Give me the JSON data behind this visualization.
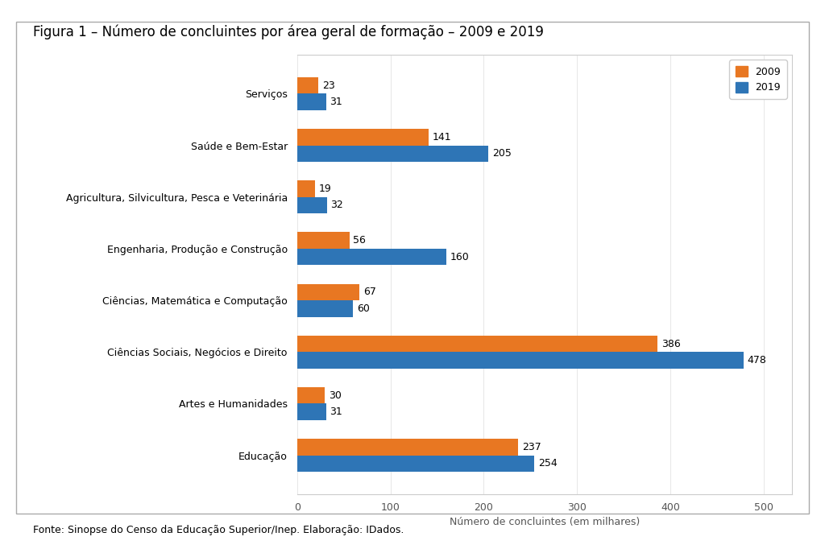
{
  "title": "Figura 1 – Número de concluintes por área geral de formação – 2009 e 2019",
  "categories": [
    "Educação",
    "Artes e Humanidades",
    "Ciências Sociais, Negócios e Direito",
    "Ciências, Matemática e Computação",
    "Engenharia, Produção e Construção",
    "Agricultura, Silvicultura, Pesca e Veterinária",
    "Saúde e Bem-Estar",
    "Serviços"
  ],
  "values_2009": [
    237,
    30,
    386,
    67,
    56,
    19,
    141,
    23
  ],
  "values_2019": [
    254,
    31,
    478,
    60,
    160,
    32,
    205,
    31
  ],
  "color_2009": "#E87722",
  "color_2019": "#2E75B6",
  "xlabel": "Número de concluintes (em milhares)",
  "xlim": [
    0,
    530
  ],
  "xticks": [
    0,
    100,
    200,
    300,
    400,
    500
  ],
  "legend_2009": "2009",
  "legend_2019": "2019",
  "footnote": "Fonte: Sinopse do Censo da Educação Superior/Inep. Elaboração: IDados.",
  "bar_height": 0.32,
  "bg_color": "#FFFFFF",
  "plot_bg_color": "#FFFFFF",
  "title_fontsize": 12,
  "label_fontsize": 9,
  "tick_fontsize": 9,
  "value_fontsize": 9,
  "footnote_fontsize": 9
}
